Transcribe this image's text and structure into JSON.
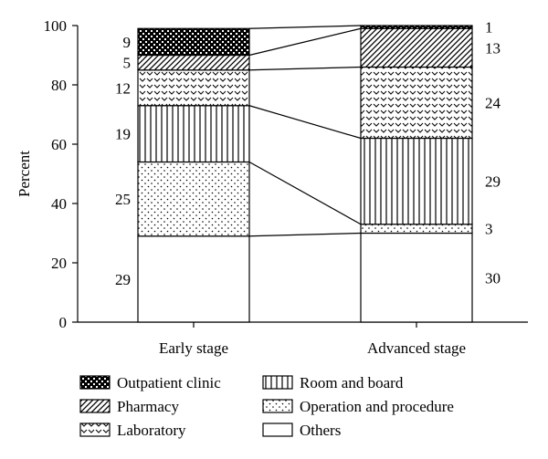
{
  "chart_data": {
    "type": "bar",
    "stacked": true,
    "categories": [
      "Early stage",
      "Advanced stage"
    ],
    "ylabel": "Percent",
    "xlabel": "",
    "ylim": [
      0,
      100
    ],
    "yticks": [
      "0",
      "20",
      "40",
      "60",
      "80",
      "100"
    ],
    "connector_lines": true,
    "legend_placement": "bottom",
    "series": [
      {
        "name": "Others",
        "pattern": "blank",
        "values": [
          29,
          30
        ],
        "labels": [
          "29",
          "30"
        ]
      },
      {
        "name": "Operation and procedure",
        "pattern": "dots",
        "values": [
          25,
          3
        ],
        "labels": [
          "25",
          "3"
        ]
      },
      {
        "name": "Room and board",
        "pattern": "vertical-lines",
        "values": [
          19,
          29
        ],
        "labels": [
          "19",
          "29"
        ]
      },
      {
        "name": "Laboratory",
        "pattern": "chevrons",
        "values": [
          12,
          24
        ],
        "labels": [
          "12",
          "24"
        ]
      },
      {
        "name": "Pharmacy",
        "pattern": "diagonal-lines",
        "values": [
          5,
          13
        ],
        "labels": [
          "5",
          "13"
        ]
      },
      {
        "name": "Outpatient clinic",
        "pattern": "checker",
        "values": [
          9,
          1
        ],
        "labels": [
          "9",
          "1"
        ]
      }
    ],
    "legend_order": [
      "Outpatient clinic",
      "Pharmacy",
      "Laboratory",
      "Room and board",
      "Operation and procedure",
      "Others"
    ]
  }
}
